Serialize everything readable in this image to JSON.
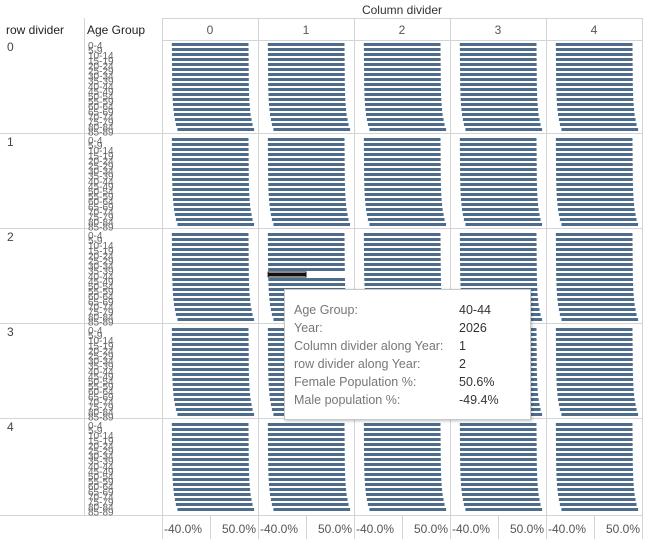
{
  "chart_data": {
    "type": "bar",
    "layout": "small-multiples population pyramid (5 x 5 grid)",
    "column_header": "Column divider",
    "row_header": "row divider",
    "age_header": "Age Group",
    "columns": [
      "0",
      "1",
      "2",
      "3",
      "4"
    ],
    "rows": [
      "0",
      "1",
      "2",
      "3",
      "4"
    ],
    "age_groups": [
      "0-4",
      "5-9",
      "10-14",
      "15-19",
      "20-24",
      "25-29",
      "30-34",
      "35-39",
      "40-44",
      "45-49",
      "50-54",
      "55-59",
      "60-64",
      "65-69",
      "70-74",
      "75-79",
      "80-84",
      "85-89"
    ],
    "x_ticks": [
      "-40.0%",
      "50.0%"
    ],
    "xlim": [
      -60,
      60
    ],
    "series": [
      {
        "name": "Female Population %",
        "values": [
          50.2,
          50.3,
          50.3,
          50.4,
          50.4,
          50.5,
          50.5,
          50.6,
          50.6,
          50.8,
          51.0,
          51.3,
          51.7,
          52.3,
          53.0,
          54.2,
          55.5,
          57.5
        ]
      },
      {
        "name": "Male population %",
        "values": [
          -49.8,
          -49.7,
          -49.7,
          -49.6,
          -49.6,
          -49.5,
          -49.5,
          -49.4,
          -49.4,
          -49.2,
          -49.0,
          -48.7,
          -48.3,
          -47.7,
          -47.0,
          -45.8,
          -44.5,
          -42.5
        ]
      }
    ],
    "bar_color": "#4e6d8c",
    "highlight_color": "#111111",
    "highlight": {
      "column": 1,
      "row": 2,
      "age_group": "40-44"
    }
  },
  "tooltip": {
    "rows": [
      {
        "key": "Age Group:",
        "value": "40-44"
      },
      {
        "key": "Year:",
        "value": "2026"
      },
      {
        "key": "Column divider along Year:",
        "value": "1"
      },
      {
        "key": "row divider along Year:",
        "value": "2"
      },
      {
        "key": "Female Population %:",
        "value": "50.6%"
      },
      {
        "key": "Male population %:",
        "value": "-49.4%"
      }
    ]
  }
}
